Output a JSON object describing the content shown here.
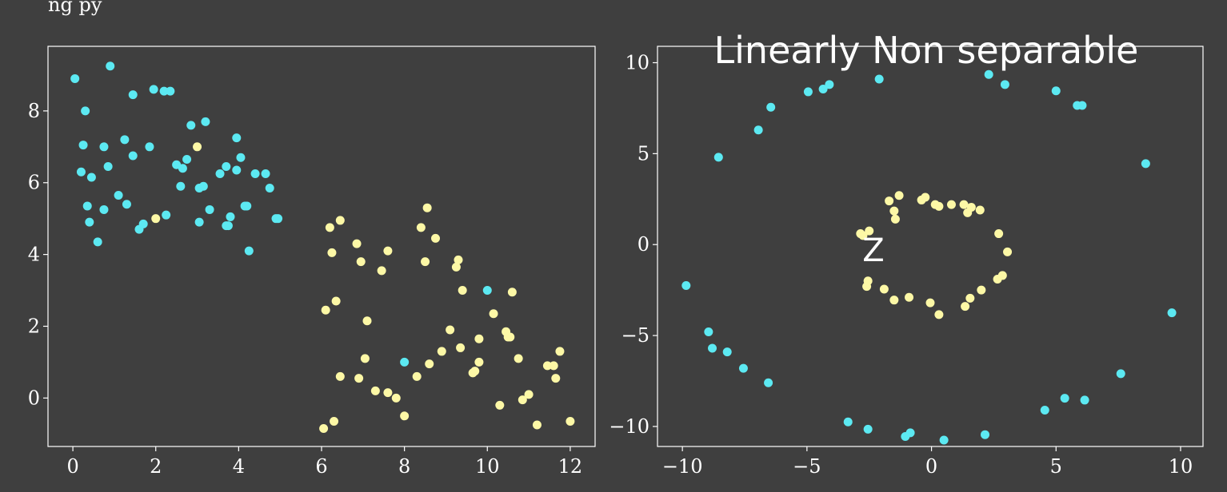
{
  "chart_data": [
    {
      "type": "scatter",
      "xlim": [
        -0.6,
        12.6
      ],
      "ylim": [
        -1.35,
        9.8
      ],
      "xticks": [
        0,
        2,
        4,
        6,
        8,
        10,
        12
      ],
      "yticks": [
        0,
        2,
        4,
        6,
        8
      ],
      "grid": false,
      "series": [
        {
          "color": "#5ce9f2",
          "points": [
            [
              0.05,
              8.9
            ],
            [
              0.9,
              9.25
            ],
            [
              1.95,
              8.6
            ],
            [
              2.2,
              8.55
            ],
            [
              2.35,
              8.55
            ],
            [
              1.45,
              8.45
            ],
            [
              0.3,
              8.0
            ],
            [
              3.2,
              7.7
            ],
            [
              2.85,
              7.6
            ],
            [
              3.95,
              7.25
            ],
            [
              1.25,
              7.2
            ],
            [
              0.25,
              7.05
            ],
            [
              0.75,
              7.0
            ],
            [
              1.85,
              7.0
            ],
            [
              1.45,
              6.75
            ],
            [
              2.75,
              6.65
            ],
            [
              4.05,
              6.7
            ],
            [
              2.5,
              6.5
            ],
            [
              2.65,
              6.4
            ],
            [
              0.85,
              6.45
            ],
            [
              3.7,
              6.45
            ],
            [
              3.55,
              6.25
            ],
            [
              3.95,
              6.35
            ],
            [
              4.4,
              6.25
            ],
            [
              4.65,
              6.25
            ],
            [
              0.2,
              6.3
            ],
            [
              0.45,
              6.15
            ],
            [
              2.6,
              5.9
            ],
            [
              3.15,
              5.9
            ],
            [
              3.05,
              5.85
            ],
            [
              4.75,
              5.85
            ],
            [
              1.1,
              5.65
            ],
            [
              1.3,
              5.4
            ],
            [
              0.35,
              5.35
            ],
            [
              4.15,
              5.35
            ],
            [
              4.2,
              5.35
            ],
            [
              3.3,
              5.25
            ],
            [
              0.75,
              5.25
            ],
            [
              2.25,
              5.1
            ],
            [
              3.8,
              5.05
            ],
            [
              4.9,
              5.0
            ],
            [
              4.95,
              5.0
            ],
            [
              0.4,
              4.9
            ],
            [
              3.05,
              4.9
            ],
            [
              1.7,
              4.85
            ],
            [
              3.75,
              4.8
            ],
            [
              3.7,
              4.8
            ],
            [
              1.6,
              4.7
            ],
            [
              0.6,
              4.35
            ],
            [
              4.25,
              4.1
            ],
            [
              10.0,
              3.0
            ],
            [
              8.0,
              1.0
            ]
          ]
        },
        {
          "color": "#fdf8a6",
          "points": [
            [
              3.0,
              7.0
            ],
            [
              2.0,
              5.0
            ],
            [
              8.55,
              5.3
            ],
            [
              6.45,
              4.95
            ],
            [
              6.2,
              4.75
            ],
            [
              8.4,
              4.75
            ],
            [
              8.75,
              4.45
            ],
            [
              6.85,
              4.3
            ],
            [
              7.6,
              4.1
            ],
            [
              6.25,
              4.05
            ],
            [
              6.95,
              3.8
            ],
            [
              8.5,
              3.8
            ],
            [
              9.3,
              3.85
            ],
            [
              7.45,
              3.55
            ],
            [
              9.25,
              3.65
            ],
            [
              9.4,
              3.0
            ],
            [
              10.6,
              2.95
            ],
            [
              6.35,
              2.7
            ],
            [
              6.1,
              2.45
            ],
            [
              10.15,
              2.35
            ],
            [
              7.1,
              2.15
            ],
            [
              9.1,
              1.9
            ],
            [
              10.45,
              1.85
            ],
            [
              10.55,
              1.7
            ],
            [
              10.5,
              1.7
            ],
            [
              9.8,
              1.65
            ],
            [
              9.35,
              1.4
            ],
            [
              11.75,
              1.3
            ],
            [
              8.9,
              1.3
            ],
            [
              10.75,
              1.1
            ],
            [
              7.05,
              1.1
            ],
            [
              9.8,
              1.0
            ],
            [
              8.6,
              0.95
            ],
            [
              11.45,
              0.9
            ],
            [
              11.6,
              0.9
            ],
            [
              9.7,
              0.75
            ],
            [
              9.65,
              0.7
            ],
            [
              6.45,
              0.6
            ],
            [
              8.3,
              0.6
            ],
            [
              11.65,
              0.55
            ],
            [
              6.9,
              0.55
            ],
            [
              7.3,
              0.2
            ],
            [
              7.6,
              0.15
            ],
            [
              11.0,
              0.1
            ],
            [
              7.8,
              0.0
            ],
            [
              10.85,
              -0.05
            ],
            [
              10.3,
              -0.2
            ],
            [
              8.0,
              -0.5
            ],
            [
              12.0,
              -0.65
            ],
            [
              6.3,
              -0.65
            ],
            [
              11.2,
              -0.75
            ],
            [
              6.05,
              -0.85
            ]
          ]
        }
      ]
    },
    {
      "type": "scatter",
      "title": "Linearly Non separable",
      "xlim": [
        -11.0,
        10.9
      ],
      "ylim": [
        -11.1,
        10.9
      ],
      "xticks": [
        -10,
        -5,
        0,
        5,
        10
      ],
      "yticks": [
        -10,
        -5,
        0,
        5,
        10
      ],
      "grid": false,
      "series": [
        {
          "color": "#5ce9f2",
          "points": [
            [
              2.3,
              9.35
            ],
            [
              -2.1,
              9.1
            ],
            [
              2.95,
              8.8
            ],
            [
              -4.1,
              8.8
            ],
            [
              -4.35,
              8.55
            ],
            [
              5.0,
              8.45
            ],
            [
              -4.95,
              8.4
            ],
            [
              5.85,
              7.65
            ],
            [
              6.05,
              7.65
            ],
            [
              -6.45,
              7.55
            ],
            [
              -6.95,
              6.3
            ],
            [
              -8.55,
              4.8
            ],
            [
              8.6,
              4.45
            ],
            [
              -9.85,
              -2.25
            ],
            [
              9.65,
              -3.75
            ],
            [
              -8.95,
              -4.8
            ],
            [
              -8.8,
              -5.7
            ],
            [
              -8.2,
              -5.9
            ],
            [
              -7.55,
              -6.8
            ],
            [
              7.6,
              -7.1
            ],
            [
              -6.55,
              -7.6
            ],
            [
              5.35,
              -8.45
            ],
            [
              6.15,
              -8.55
            ],
            [
              4.55,
              -9.1
            ],
            [
              -3.35,
              -9.75
            ],
            [
              -2.55,
              -10.15
            ],
            [
              -0.85,
              -10.35
            ],
            [
              2.15,
              -10.45
            ],
            [
              -1.05,
              -10.55
            ],
            [
              0.5,
              -10.75
            ]
          ]
        },
        {
          "color": "#fdf8a6",
          "points": [
            [
              -1.3,
              2.7
            ],
            [
              -0.25,
              2.6
            ],
            [
              -0.4,
              2.45
            ],
            [
              -1.7,
              2.4
            ],
            [
              0.15,
              2.2
            ],
            [
              0.3,
              2.1
            ],
            [
              1.3,
              2.2
            ],
            [
              0.8,
              2.2
            ],
            [
              1.6,
              2.05
            ],
            [
              1.95,
              1.9
            ],
            [
              1.45,
              1.75
            ],
            [
              -1.5,
              1.85
            ],
            [
              -1.45,
              1.4
            ],
            [
              -2.5,
              0.75
            ],
            [
              -2.85,
              0.6
            ],
            [
              2.7,
              0.6
            ],
            [
              -2.75,
              0.5
            ],
            [
              3.05,
              -0.4
            ],
            [
              2.85,
              -1.7
            ],
            [
              2.65,
              -1.9
            ],
            [
              -2.55,
              -2.0
            ],
            [
              -2.6,
              -2.3
            ],
            [
              -1.9,
              -2.45
            ],
            [
              2.0,
              -2.5
            ],
            [
              -0.9,
              -2.9
            ],
            [
              1.55,
              -2.95
            ],
            [
              -1.5,
              -3.05
            ],
            [
              -0.05,
              -3.2
            ],
            [
              1.35,
              -3.4
            ],
            [
              0.3,
              -3.85
            ]
          ]
        }
      ],
      "annotation": "Z"
    }
  ],
  "header_fragment": "ng                 py"
}
